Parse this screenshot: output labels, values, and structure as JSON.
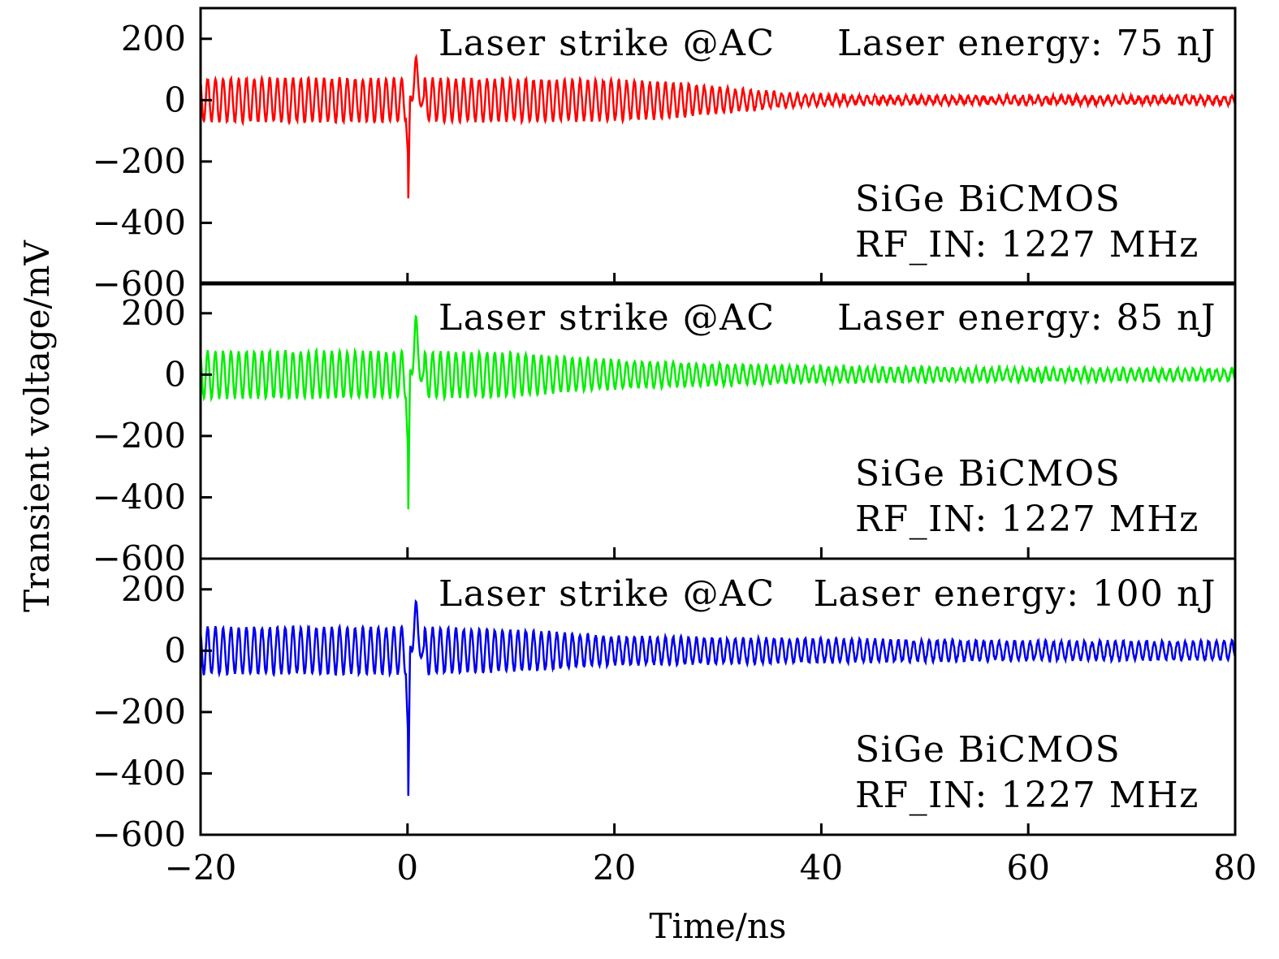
{
  "chart_data": {
    "type": "line",
    "xlabel": "Time/ns",
    "ylabel": "Transient voltage/mV",
    "xlim": [
      -20,
      80
    ],
    "x_ticks": [
      -20,
      0,
      20,
      40,
      60,
      80
    ],
    "x_tick_labels": [
      "−20",
      "0",
      "20",
      "40",
      "60",
      "80"
    ],
    "ylim": [
      -600,
      300
    ],
    "y_ticks": [
      200,
      0,
      -200,
      -400,
      -600
    ],
    "y_tick_labels": [
      "200",
      "0",
      "−200",
      "−400",
      "−600"
    ],
    "grid": false,
    "panels": [
      {
        "name": "75 nJ",
        "color": "#ff0000",
        "annotation_strike": "Laser strike @AC",
        "annotation_energy": "Laser energy: 75 nJ",
        "annotation_device": "SiGe BiCMOS",
        "annotation_rf": "RF_IN: 1227 MHz",
        "oscillation_period_ns": 0.75,
        "envelope": [
          [
            -20,
            70
          ],
          [
            0,
            70
          ],
          [
            20,
            65
          ],
          [
            26,
            55
          ],
          [
            32,
            35
          ],
          [
            38,
            18
          ],
          [
            45,
            12
          ],
          [
            80,
            12
          ]
        ],
        "spike_min": -380,
        "spike_max": 130
      },
      {
        "name": "85 nJ",
        "color": "#00ee00",
        "annotation_strike": "Laser strike @AC",
        "annotation_energy": "Laser energy: 85 nJ",
        "annotation_device": "SiGe BiCMOS",
        "annotation_rf": "RF_IN: 1227 MHz",
        "oscillation_period_ns": 0.75,
        "envelope": [
          [
            -20,
            75
          ],
          [
            0,
            75
          ],
          [
            10,
            70
          ],
          [
            18,
            50
          ],
          [
            28,
            35
          ],
          [
            40,
            25
          ],
          [
            60,
            20
          ],
          [
            80,
            18
          ]
        ],
        "spike_min": -520,
        "spike_max": 180
      },
      {
        "name": "100 nJ",
        "color": "#0000ee",
        "annotation_strike": "Laser strike @AC",
        "annotation_energy": "Laser energy: 100 nJ",
        "annotation_device": "SiGe BiCMOS",
        "annotation_rf": "RF_IN: 1227 MHz",
        "oscillation_period_ns": 0.75,
        "envelope": [
          [
            -20,
            75
          ],
          [
            0,
            75
          ],
          [
            12,
            65
          ],
          [
            20,
            45
          ],
          [
            40,
            38
          ],
          [
            60,
            30
          ],
          [
            80,
            30
          ]
        ],
        "spike_min": -560,
        "spike_max": 150
      }
    ]
  }
}
